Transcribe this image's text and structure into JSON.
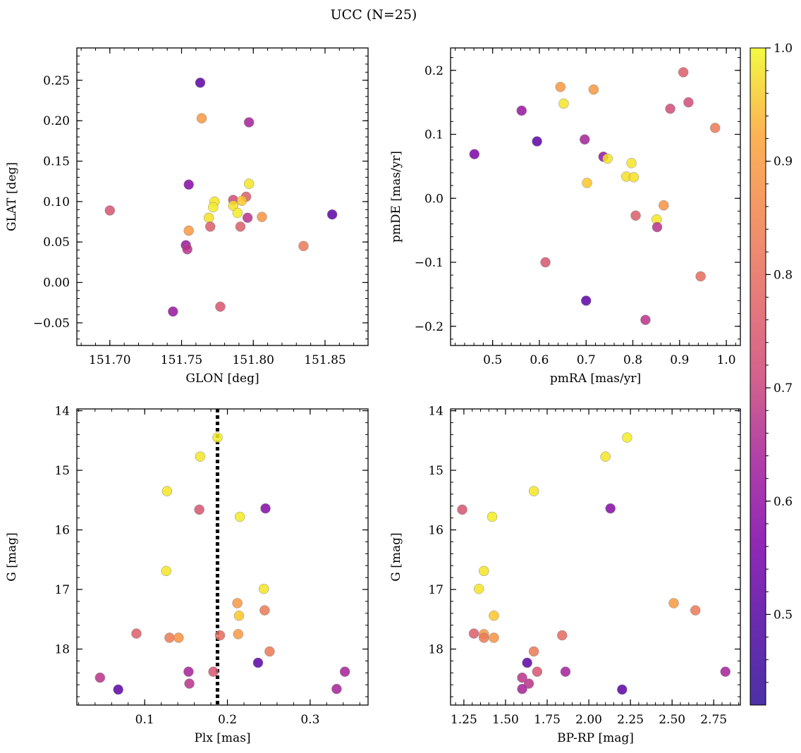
{
  "title": "UCC (N=25)",
  "colormap": {
    "name": "plasma",
    "ticks": [
      "0.5",
      "0.6",
      "0.7",
      "0.8",
      "0.9",
      "1.0"
    ],
    "range": [
      0.42,
      1.0
    ]
  },
  "cluster_plx": 0.188,
  "chart_data": [
    {
      "type": "scatter",
      "xlabel": "GLON [deg]",
      "ylabel": "GLAT [deg]",
      "xlim": [
        151.677,
        151.88
      ],
      "ylim": [
        -0.078,
        0.29
      ],
      "xticks": [
        "151.70",
        "151.75",
        "151.80",
        "151.85"
      ],
      "yticks": [
        "−0.05",
        "0.00",
        "0.05",
        "0.10",
        "0.15",
        "0.20",
        "0.25"
      ],
      "points": [
        {
          "x": 151.763,
          "y": 0.247,
          "c": 0.45
        },
        {
          "x": 151.764,
          "y": 0.203,
          "c": 0.84
        },
        {
          "x": 151.797,
          "y": 0.198,
          "c": 0.58
        },
        {
          "x": 151.755,
          "y": 0.121,
          "c": 0.52
        },
        {
          "x": 151.797,
          "y": 0.122,
          "c": 0.97
        },
        {
          "x": 151.795,
          "y": 0.106,
          "c": 0.72
        },
        {
          "x": 151.786,
          "y": 0.102,
          "c": 0.68
        },
        {
          "x": 151.773,
          "y": 0.1,
          "c": 0.97
        },
        {
          "x": 151.792,
          "y": 0.101,
          "c": 0.92
        },
        {
          "x": 151.772,
          "y": 0.093,
          "c": 0.98
        },
        {
          "x": 151.786,
          "y": 0.095,
          "c": 0.96
        },
        {
          "x": 151.7,
          "y": 0.089,
          "c": 0.7
        },
        {
          "x": 151.789,
          "y": 0.086,
          "c": 0.98
        },
        {
          "x": 151.855,
          "y": 0.084,
          "c": 0.45
        },
        {
          "x": 151.769,
          "y": 0.08,
          "c": 0.96
        },
        {
          "x": 151.806,
          "y": 0.081,
          "c": 0.83
        },
        {
          "x": 151.796,
          "y": 0.08,
          "c": 0.62
        },
        {
          "x": 151.77,
          "y": 0.069,
          "c": 0.72
        },
        {
          "x": 151.791,
          "y": 0.069,
          "c": 0.72
        },
        {
          "x": 151.755,
          "y": 0.064,
          "c": 0.84
        },
        {
          "x": 151.753,
          "y": 0.046,
          "c": 0.55
        },
        {
          "x": 151.754,
          "y": 0.041,
          "c": 0.62
        },
        {
          "x": 151.835,
          "y": 0.045,
          "c": 0.78
        },
        {
          "x": 151.744,
          "y": -0.036,
          "c": 0.55
        },
        {
          "x": 151.777,
          "y": -0.03,
          "c": 0.7
        }
      ]
    },
    {
      "type": "scatter",
      "xlabel": "pmRA [mas/yr]",
      "ylabel": "pmDE [mas/yr]",
      "xlim": [
        0.41,
        1.03
      ],
      "ylim": [
        -0.23,
        0.235
      ],
      "xticks": [
        "0.5",
        "0.6",
        "0.7",
        "0.8",
        "0.9",
        "1.0"
      ],
      "yticks": [
        "−0.2",
        "−0.1",
        "0.0",
        "0.1",
        "0.2"
      ],
      "points": [
        {
          "x": 0.908,
          "y": 0.197,
          "c": 0.72
        },
        {
          "x": 0.645,
          "y": 0.174,
          "c": 0.84
        },
        {
          "x": 0.716,
          "y": 0.17,
          "c": 0.84
        },
        {
          "x": 0.919,
          "y": 0.15,
          "c": 0.68
        },
        {
          "x": 0.652,
          "y": 0.148,
          "c": 0.97
        },
        {
          "x": 0.88,
          "y": 0.14,
          "c": 0.68
        },
        {
          "x": 0.562,
          "y": 0.137,
          "c": 0.55
        },
        {
          "x": 0.976,
          "y": 0.11,
          "c": 0.78
        },
        {
          "x": 0.697,
          "y": 0.092,
          "c": 0.58
        },
        {
          "x": 0.595,
          "y": 0.089,
          "c": 0.45
        },
        {
          "x": 0.461,
          "y": 0.069,
          "c": 0.5
        },
        {
          "x": 0.737,
          "y": 0.065,
          "c": 0.55
        },
        {
          "x": 0.746,
          "y": 0.062,
          "c": 0.97
        },
        {
          "x": 0.797,
          "y": 0.055,
          "c": 0.97
        },
        {
          "x": 0.786,
          "y": 0.034,
          "c": 0.96
        },
        {
          "x": 0.802,
          "y": 0.033,
          "c": 0.96
        },
        {
          "x": 0.702,
          "y": 0.024,
          "c": 0.92
        },
        {
          "x": 0.866,
          "y": -0.011,
          "c": 0.83
        },
        {
          "x": 0.806,
          "y": -0.027,
          "c": 0.72
        },
        {
          "x": 0.851,
          "y": -0.033,
          "c": 0.97
        },
        {
          "x": 0.852,
          "y": -0.045,
          "c": 0.62
        },
        {
          "x": 0.613,
          "y": -0.1,
          "c": 0.7
        },
        {
          "x": 0.945,
          "y": -0.122,
          "c": 0.75
        },
        {
          "x": 0.7,
          "y": -0.16,
          "c": 0.45
        },
        {
          "x": 0.827,
          "y": -0.19,
          "c": 0.62
        }
      ]
    },
    {
      "type": "scatter",
      "xlabel": "Plx [mas]",
      "ylabel": "G [mag]",
      "xlim": [
        0.018,
        0.37
      ],
      "ylim": [
        18.94,
        13.97
      ],
      "xticks": [
        "0.1",
        "0.2",
        "0.3"
      ],
      "yticks": [
        "14",
        "15",
        "16",
        "17",
        "18"
      ],
      "points": [
        {
          "x": 0.188,
          "y": 14.45,
          "c": 0.98
        },
        {
          "x": 0.167,
          "y": 14.77,
          "c": 0.97
        },
        {
          "x": 0.127,
          "y": 15.35,
          "c": 0.97
        },
        {
          "x": 0.166,
          "y": 15.66,
          "c": 0.7
        },
        {
          "x": 0.246,
          "y": 15.64,
          "c": 0.52
        },
        {
          "x": 0.215,
          "y": 15.78,
          "c": 0.98
        },
        {
          "x": 0.126,
          "y": 16.69,
          "c": 0.97
        },
        {
          "x": 0.244,
          "y": 16.99,
          "c": 0.97
        },
        {
          "x": 0.212,
          "y": 17.23,
          "c": 0.84
        },
        {
          "x": 0.245,
          "y": 17.35,
          "c": 0.78
        },
        {
          "x": 0.214,
          "y": 17.44,
          "c": 0.92
        },
        {
          "x": 0.09,
          "y": 17.74,
          "c": 0.72
        },
        {
          "x": 0.213,
          "y": 17.75,
          "c": 0.84
        },
        {
          "x": 0.191,
          "y": 17.77,
          "c": 0.75
        },
        {
          "x": 0.13,
          "y": 17.81,
          "c": 0.78
        },
        {
          "x": 0.141,
          "y": 17.81,
          "c": 0.83
        },
        {
          "x": 0.251,
          "y": 18.04,
          "c": 0.78
        },
        {
          "x": 0.237,
          "y": 18.23,
          "c": 0.45
        },
        {
          "x": 0.153,
          "y": 18.38,
          "c": 0.58
        },
        {
          "x": 0.183,
          "y": 18.38,
          "c": 0.7
        },
        {
          "x": 0.342,
          "y": 18.38,
          "c": 0.58
        },
        {
          "x": 0.046,
          "y": 18.48,
          "c": 0.62
        },
        {
          "x": 0.154,
          "y": 18.58,
          "c": 0.62
        },
        {
          "x": 0.068,
          "y": 18.68,
          "c": 0.45
        },
        {
          "x": 0.332,
          "y": 18.67,
          "c": 0.58
        }
      ]
    },
    {
      "type": "scatter",
      "xlabel": "BP-RP [mag]",
      "ylabel": "G [mag]",
      "xlim": [
        1.17,
        2.91
      ],
      "ylim": [
        18.94,
        13.97
      ],
      "xticks": [
        "1.25",
        "1.50",
        "1.75",
        "2.00",
        "2.25",
        "2.50",
        "2.75"
      ],
      "yticks": [
        "14",
        "15",
        "16",
        "17",
        "18"
      ],
      "points": [
        {
          "x": 2.23,
          "y": 14.45,
          "c": 0.98
        },
        {
          "x": 2.1,
          "y": 14.77,
          "c": 0.97
        },
        {
          "x": 1.67,
          "y": 15.35,
          "c": 0.97
        },
        {
          "x": 1.24,
          "y": 15.66,
          "c": 0.7
        },
        {
          "x": 2.13,
          "y": 15.64,
          "c": 0.52
        },
        {
          "x": 1.42,
          "y": 15.78,
          "c": 0.98
        },
        {
          "x": 1.37,
          "y": 16.69,
          "c": 0.97
        },
        {
          "x": 1.34,
          "y": 16.99,
          "c": 0.97
        },
        {
          "x": 2.51,
          "y": 17.23,
          "c": 0.84
        },
        {
          "x": 2.64,
          "y": 17.35,
          "c": 0.78
        },
        {
          "x": 1.43,
          "y": 17.44,
          "c": 0.92
        },
        {
          "x": 1.31,
          "y": 17.74,
          "c": 0.72
        },
        {
          "x": 1.37,
          "y": 17.75,
          "c": 0.84
        },
        {
          "x": 1.84,
          "y": 17.77,
          "c": 0.75
        },
        {
          "x": 1.37,
          "y": 17.81,
          "c": 0.78
        },
        {
          "x": 1.43,
          "y": 17.81,
          "c": 0.83
        },
        {
          "x": 1.67,
          "y": 18.04,
          "c": 0.78
        },
        {
          "x": 1.63,
          "y": 18.23,
          "c": 0.45
        },
        {
          "x": 1.86,
          "y": 18.38,
          "c": 0.58
        },
        {
          "x": 1.69,
          "y": 18.38,
          "c": 0.7
        },
        {
          "x": 2.82,
          "y": 18.38,
          "c": 0.58
        },
        {
          "x": 1.6,
          "y": 18.48,
          "c": 0.62
        },
        {
          "x": 1.64,
          "y": 18.58,
          "c": 0.62
        },
        {
          "x": 2.2,
          "y": 18.68,
          "c": 0.45
        },
        {
          "x": 1.6,
          "y": 18.67,
          "c": 0.58
        }
      ]
    }
  ]
}
